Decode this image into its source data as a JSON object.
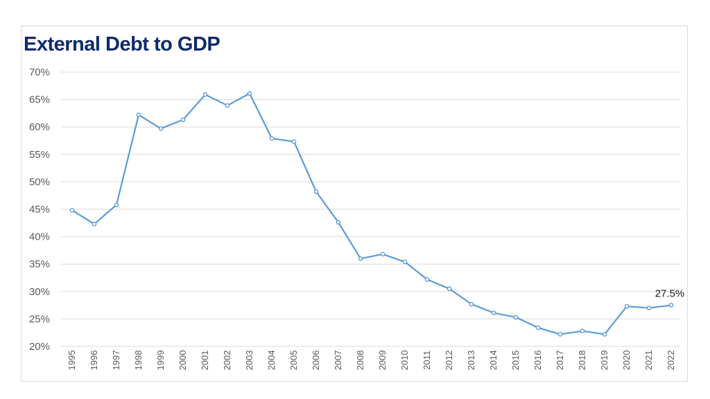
{
  "chart_data": {
    "type": "line",
    "title": "External Debt to GDP",
    "xlabel": "",
    "ylabel": "",
    "ylim": [
      20,
      70
    ],
    "y_ticks": [
      20,
      25,
      30,
      35,
      40,
      45,
      50,
      55,
      60,
      65,
      70
    ],
    "y_tick_labels": [
      "20%",
      "25%",
      "30%",
      "35%",
      "40%",
      "45%",
      "50%",
      "55%",
      "60%",
      "65%",
      "70%"
    ],
    "grid": true,
    "categories": [
      "1995",
      "1996",
      "1997",
      "1998",
      "1999",
      "2000",
      "2001",
      "2002",
      "2003",
      "2004",
      "2005",
      "2006",
      "2007",
      "2008",
      "2009",
      "2010",
      "2011",
      "2012",
      "2013",
      "2014",
      "2015",
      "2016",
      "2017",
      "2018",
      "2019",
      "2020",
      "2021",
      "2022"
    ],
    "series": [
      {
        "name": "External Debt to GDP",
        "color": "#5b9bd5",
        "values": [
          44.8,
          42.3,
          45.8,
          62.2,
          59.7,
          61.3,
          65.9,
          63.9,
          66.1,
          57.9,
          57.3,
          48.2,
          42.6,
          36.0,
          36.8,
          35.4,
          32.2,
          30.5,
          27.7,
          26.1,
          25.3,
          23.4,
          22.2,
          22.8,
          22.2,
          27.3,
          27.0,
          27.5
        ]
      }
    ],
    "annotations": [
      {
        "category": "2022",
        "value": 27.5,
        "text": "27.5%"
      }
    ]
  }
}
